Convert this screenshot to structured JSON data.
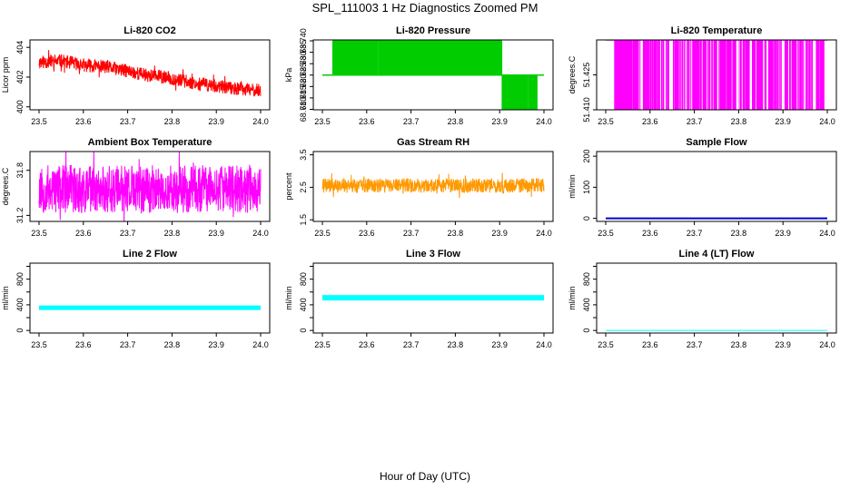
{
  "figure": {
    "title": "SPL_111003  1 Hz Diagnostics Zoomed PM",
    "xlabel": "Hour of Day (UTC)"
  },
  "chart_data": [
    {
      "type": "line",
      "title": "Li-820 CO2",
      "ylabel": "Licor ppm",
      "color": "#ff0000",
      "xlim": [
        23.5,
        24.0
      ],
      "ylim": [
        399.8,
        404.5
      ],
      "xticks": [
        23.5,
        23.6,
        23.7,
        23.8,
        23.9,
        24.0
      ],
      "xtick_labels": [
        "23.5",
        "23.6",
        "23.7",
        "23.8",
        "23.9",
        "24.0"
      ],
      "yticks": [
        400,
        402,
        404
      ],
      "ytick_labels": [
        "400",
        "402",
        "404"
      ],
      "x": [
        23.5,
        23.55,
        23.6,
        23.65,
        23.7,
        23.75,
        23.8,
        23.85,
        23.9,
        23.95,
        24.0
      ],
      "y": [
        403.0,
        403.1,
        402.8,
        402.7,
        402.4,
        402.1,
        401.9,
        401.6,
        401.4,
        401.2,
        401.1
      ],
      "noise": 0.45,
      "seed": 11,
      "style": "line"
    },
    {
      "type": "line",
      "title": "Li-820 Pressure",
      "ylabel": "kPa",
      "color": "#00cc00",
      "xlim": [
        23.5,
        24.0
      ],
      "ylim": [
        68.7098,
        68.7404
      ],
      "xticks": [
        23.5,
        23.6,
        23.7,
        23.8,
        23.9,
        24.0
      ],
      "xtick_labels": [
        "23.5",
        "23.6",
        "23.7",
        "23.8",
        "23.9",
        "24.0"
      ],
      "yticks": [
        68.71,
        68.715,
        68.72,
        68.725,
        68.73,
        68.735,
        68.74
      ],
      "ytick_labels": [
        "68.710",
        "68.715",
        "68.720",
        "68.725",
        "68.730",
        "68.735",
        "68.740"
      ],
      "levels": [
        68.725,
        68.74,
        68.71
      ],
      "note": "signal toggles between 68.725 and 68.740 kPa until ~23.905 h, then between 68.725 and 68.710 kPa",
      "seed": 23,
      "style": "step"
    },
    {
      "type": "line",
      "title": "Li-820 Temperature",
      "ylabel": "degrees.C",
      "color": "#ff00ff",
      "xlim": [
        23.5,
        24.0
      ],
      "ylim": [
        51.41,
        51.44
      ],
      "xticks": [
        23.5,
        23.6,
        23.7,
        23.8,
        23.9,
        24.0
      ],
      "xtick_labels": [
        "23.5",
        "23.6",
        "23.7",
        "23.8",
        "23.9",
        "24.0"
      ],
      "yticks": [
        51.41,
        51.425
      ],
      "ytick_labels": [
        "51.410",
        "51.425"
      ],
      "levels": [
        51.44,
        51.41
      ],
      "note": "mostly at 51.440 with frequent drops to 51.410",
      "seed": 37,
      "style": "spike"
    },
    {
      "type": "line",
      "title": "Ambient Box Temperature",
      "ylabel": "degrees.C",
      "color": "#ff00ff",
      "xlim": [
        23.5,
        24.0
      ],
      "ylim": [
        31.12,
        32.05
      ],
      "xticks": [
        23.5,
        23.6,
        23.7,
        23.8,
        23.9,
        24.0
      ],
      "xtick_labels": [
        "23.5",
        "23.6",
        "23.7",
        "23.8",
        "23.9",
        "24.0"
      ],
      "yticks": [
        31.2,
        31.8
      ],
      "ytick_labels": [
        "31.2",
        "31.8"
      ],
      "x": [
        23.5,
        24.0
      ],
      "y": [
        31.55,
        31.55
      ],
      "noise": 0.32,
      "seed": 53,
      "style": "band"
    },
    {
      "type": "scatter",
      "title": "Gas Stream RH",
      "ylabel": "percent",
      "color": "#ff9900",
      "xlim": [
        23.5,
        24.0
      ],
      "ylim": [
        1.45,
        3.6
      ],
      "xticks": [
        23.5,
        23.6,
        23.7,
        23.8,
        23.9,
        24.0
      ],
      "xtick_labels": [
        "23.5",
        "23.6",
        "23.7",
        "23.8",
        "23.9",
        "24.0"
      ],
      "yticks": [
        1.5,
        2.5,
        3.5
      ],
      "ytick_labels": [
        "1.5",
        "2.5",
        "3.5"
      ],
      "x": [
        23.5,
        24.0
      ],
      "y": [
        2.55,
        2.55
      ],
      "noise": 0.22,
      "seed": 71,
      "style": "band"
    },
    {
      "type": "line",
      "title": "Sample Flow",
      "ylabel": "ml/min",
      "color": "#0000cc",
      "xlim": [
        23.5,
        24.0
      ],
      "ylim": [
        -10,
        215
      ],
      "xticks": [
        23.5,
        23.6,
        23.7,
        23.8,
        23.9,
        24.0
      ],
      "xtick_labels": [
        "23.5",
        "23.6",
        "23.7",
        "23.8",
        "23.9",
        "24.0"
      ],
      "yticks": [
        0,
        100,
        200
      ],
      "ytick_labels": [
        "0",
        "100",
        "200"
      ],
      "x": [
        23.5,
        24.0
      ],
      "y": [
        0,
        0
      ],
      "style": "flat",
      "width": 2
    },
    {
      "type": "line",
      "title": "Line 2 Flow",
      "ylabel": "ml/min",
      "color": "#00ffff",
      "xlim": [
        23.5,
        24.0
      ],
      "ylim": [
        -40,
        1050
      ],
      "xticks": [
        23.5,
        23.6,
        23.7,
        23.8,
        23.9,
        24.0
      ],
      "xtick_labels": [
        "23.5",
        "23.6",
        "23.7",
        "23.8",
        "23.9",
        "24.0"
      ],
      "yticks": [
        0,
        200,
        400,
        600,
        800,
        1000
      ],
      "ytick_labels": [
        "0",
        "",
        "400",
        "",
        "800",
        ""
      ],
      "x": [
        23.5,
        24.0
      ],
      "y": [
        355,
        355
      ],
      "style": "flat",
      "width": 5
    },
    {
      "type": "line",
      "title": "Line 3 Flow",
      "ylabel": "ml/min",
      "color": "#00ffff",
      "xlim": [
        23.5,
        24.0
      ],
      "ylim": [
        -40,
        1050
      ],
      "xticks": [
        23.5,
        23.6,
        23.7,
        23.8,
        23.9,
        24.0
      ],
      "xtick_labels": [
        "23.5",
        "23.6",
        "23.7",
        "23.8",
        "23.9",
        "24.0"
      ],
      "yticks": [
        0,
        200,
        400,
        600,
        800,
        1000
      ],
      "ytick_labels": [
        "0",
        "",
        "400",
        "",
        "800",
        ""
      ],
      "x": [
        23.5,
        24.0
      ],
      "y": [
        510,
        510
      ],
      "style": "flat",
      "width": 6
    },
    {
      "type": "line",
      "title": "Line 4 (LT) Flow",
      "ylabel": "ml/min",
      "color": "#00ffff",
      "xlim": [
        23.5,
        24.0
      ],
      "ylim": [
        -40,
        1050
      ],
      "xticks": [
        23.5,
        23.6,
        23.7,
        23.8,
        23.9,
        24.0
      ],
      "xtick_labels": [
        "23.5",
        "23.6",
        "23.7",
        "23.8",
        "23.9",
        "24.0"
      ],
      "yticks": [
        0,
        200,
        400,
        600,
        800,
        1000
      ],
      "ytick_labels": [
        "0",
        "",
        "400",
        "",
        "800",
        ""
      ],
      "x": [
        23.5,
        24.0
      ],
      "y": [
        0,
        0
      ],
      "style": "flat",
      "width": 1
    }
  ]
}
